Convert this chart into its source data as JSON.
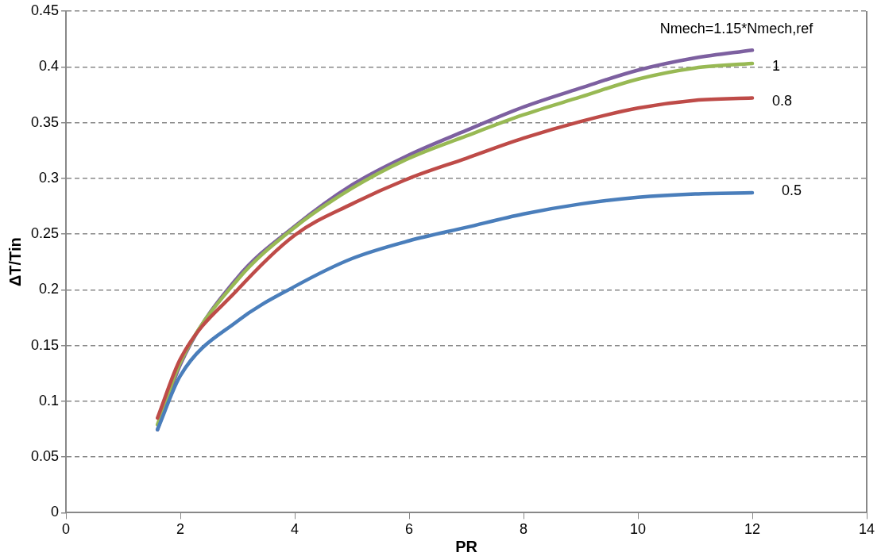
{
  "chart_data": {
    "type": "line",
    "xlabel": "PR",
    "ylabel": "ΔT/Tin",
    "x": [
      1.6,
      2,
      3,
      4,
      5,
      6,
      7,
      8,
      9,
      10,
      11,
      12
    ],
    "series": [
      {
        "name": "0.5",
        "color": "#4a7ebb",
        "values": [
          0.0745,
          0.123,
          0.172,
          0.203,
          0.228,
          0.244,
          0.256,
          0.268,
          0.277,
          0.283,
          0.286,
          0.287
        ]
      },
      {
        "name": "0.8",
        "color": "#be4b48",
        "values": [
          0.085,
          0.138,
          0.2,
          0.249,
          0.277,
          0.3,
          0.318,
          0.336,
          0.351,
          0.363,
          0.37,
          0.372
        ]
      },
      {
        "name": "1",
        "color": "#98b954",
        "values": [
          0.079,
          0.135,
          0.209,
          0.256,
          0.291,
          0.318,
          0.338,
          0.357,
          0.373,
          0.389,
          0.399,
          0.403
        ]
      },
      {
        "name": "Nmech=1.15*Nmech,ref",
        "color": "#7d60a0",
        "values": [
          0.0745,
          0.133,
          0.211,
          0.257,
          0.294,
          0.321,
          0.343,
          0.364,
          0.381,
          0.397,
          0.408,
          0.415
        ]
      }
    ],
    "xlim": [
      0,
      14
    ],
    "xticks": [
      0,
      2,
      4,
      6,
      8,
      10,
      12,
      14
    ],
    "ylim": [
      0,
      0.45
    ],
    "yticks": [
      0,
      0.05,
      0.1,
      0.15,
      0.2,
      0.25,
      0.3,
      0.35,
      0.4,
      0.45
    ],
    "grid": "y",
    "legend": false,
    "marker": "none",
    "line_style": "solid"
  }
}
